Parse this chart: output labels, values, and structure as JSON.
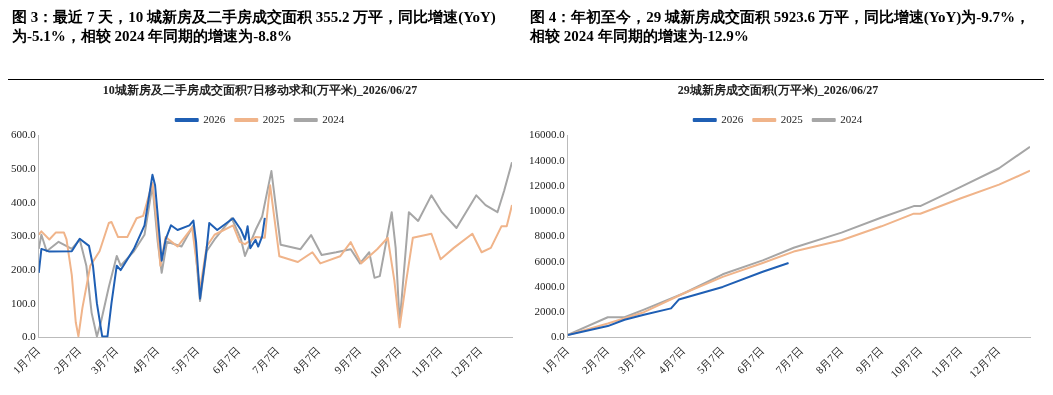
{
  "chart_data": [
    {
      "type": "line",
      "subtitle": "图 3：最近 7 天，10 城新房及二手房成交面积 355.2 万平，同比增速(YoY)为-5.1%，相较 2024 年同期的增速为-8.8%",
      "title": "10城新房及二手房成交面积7日移动求和(万平米)_2026/06/27",
      "legend": "top",
      "marker": "none",
      "line_style": "solid",
      "xlim": [
        "--01-07",
        "--12-31"
      ],
      "xticks": [
        {
          "value": "--01-07",
          "label": "1月7日"
        },
        {
          "value": "--02-07",
          "label": "2月7日"
        },
        {
          "value": "--03-07",
          "label": "3月7日"
        },
        {
          "value": "--04-07",
          "label": "4月7日"
        },
        {
          "value": "--05-07",
          "label": "5月7日"
        },
        {
          "value": "--06-07",
          "label": "6月7日"
        },
        {
          "value": "--07-07",
          "label": "7月7日"
        },
        {
          "value": "--08-07",
          "label": "8月7日"
        },
        {
          "value": "--09-07",
          "label": "9月7日"
        },
        {
          "value": "--10-07",
          "label": "10月7日"
        },
        {
          "value": "--11-07",
          "label": "11月7日"
        },
        {
          "value": "--12-07",
          "label": "12月7日"
        }
      ],
      "ylim": [
        0,
        600
      ],
      "yticks": [
        {
          "value": 0,
          "label": "0.0"
        },
        {
          "value": 100,
          "label": "100.0"
        },
        {
          "value": 200,
          "label": "200.0"
        },
        {
          "value": 300,
          "label": "300.0"
        },
        {
          "value": 400,
          "label": "400.0"
        },
        {
          "value": 500,
          "label": "500.0"
        },
        {
          "value": 600,
          "label": "600.0"
        }
      ],
      "series": [
        {
          "name": "2026",
          "color": "#1f5fb4",
          "x": [
            "--01-07",
            "--01-09",
            "--01-15",
            "--02-01",
            "--02-07",
            "--02-14",
            "--02-17",
            "--02-20",
            "--02-24",
            "--02-28",
            "--03-03",
            "--03-07",
            "--03-10",
            "--03-20",
            "--03-28",
            "--04-03",
            "--04-05",
            "--04-10",
            "--04-13",
            "--04-17",
            "--04-22",
            "--05-01",
            "--05-04",
            "--05-06",
            "--05-09",
            "--05-14",
            "--05-16",
            "--05-22",
            "--06-03",
            "--06-09",
            "--06-12",
            "--06-14",
            "--06-16",
            "--06-20",
            "--06-22",
            "--06-25",
            "--06-27"
          ],
          "values": [
            192,
            263,
            255,
            256,
            293,
            272,
            213,
            101,
            3,
            3,
            101,
            213,
            200,
            263,
            333,
            483,
            452,
            228,
            291,
            333,
            319,
            333,
            347,
            284,
            115,
            263,
            340,
            319,
            354,
            319,
            291,
            330,
            265,
            290,
            270,
            300,
            355
          ]
        },
        {
          "name": "2025",
          "color": "#f0b48a",
          "x": [
            "--01-07",
            "--01-09",
            "--01-15",
            "--01-20",
            "--01-26",
            "--01-28",
            "--02-01",
            "--02-04",
            "--02-06",
            "--02-09",
            "--02-15",
            "--02-22",
            "--03-01",
            "--03-03",
            "--03-08",
            "--03-15",
            "--03-22",
            "--03-27",
            "--04-03",
            "--04-06",
            "--04-09",
            "--04-13",
            "--04-22",
            "--05-03",
            "--05-09",
            "--05-14",
            "--05-20",
            "--06-03",
            "--06-08",
            "--06-12",
            "--06-20",
            "--06-27",
            "--07-01",
            "--07-08",
            "--07-22",
            "--08-02",
            "--08-08",
            "--08-23",
            "--08-31",
            "--09-08",
            "--09-20",
            "--09-28",
            "--10-03",
            "--10-07",
            "--10-12",
            "--10-17",
            "--10-31",
            "--11-07",
            "--11-17",
            "--12-01",
            "--12-08",
            "--12-15",
            "--12-23",
            "--12-27",
            "--12-31"
          ],
          "values": [
            305,
            315,
            291,
            312,
            312,
            291,
            185,
            45,
            3,
            87,
            213,
            256,
            340,
            343,
            298,
            298,
            354,
            361,
            459,
            354,
            213,
            298,
            270,
            326,
            143,
            270,
            305,
            333,
            284,
            277,
            298,
            296,
            452,
            241,
            224,
            253,
            220,
            241,
            283,
            220,
            262,
            296,
            169,
            30,
            169,
            296,
            308,
            232,
            266,
            308,
            253,
            266,
            330,
            330,
            393
          ]
        },
        {
          "name": "2024",
          "color": "#a6a6a6",
          "x": [
            "--01-07",
            "--01-09",
            "--01-13",
            "--01-22",
            "--02-01",
            "--02-07",
            "--02-12",
            "--02-16",
            "--02-20",
            "--02-23",
            "--03-01",
            "--03-07",
            "--03-10",
            "--03-20",
            "--03-28",
            "--04-03",
            "--04-07",
            "--04-10",
            "--04-14",
            "--04-25",
            "--05-04",
            "--05-09",
            "--05-14",
            "--05-20",
            "--06-02",
            "--06-09",
            "--06-12",
            "--06-20",
            "--06-25",
            "--07-02",
            "--07-09",
            "--07-24",
            "--08-01",
            "--08-09",
            "--08-20",
            "--08-31",
            "--09-07",
            "--09-14",
            "--09-18",
            "--09-22",
            "--10-01",
            "--10-04",
            "--10-07",
            "--10-14",
            "--10-21",
            "--10-31",
            "--11-08",
            "--11-19",
            "--12-04",
            "--12-11",
            "--12-20",
            "--12-25",
            "--12-31"
          ],
          "values": [
            263,
            305,
            256,
            284,
            263,
            291,
            213,
            73,
            3,
            45,
            150,
            242,
            213,
            256,
            305,
            452,
            284,
            192,
            284,
            270,
            333,
            108,
            256,
            291,
            354,
            291,
            242,
            319,
            359,
            494,
            275,
            262,
            304,
            245,
            253,
            262,
            220,
            253,
            177,
            182,
            372,
            266,
            42,
            372,
            346,
            422,
            372,
            325,
            422,
            393,
            372,
            435,
            520
          ]
        }
      ]
    },
    {
      "type": "line",
      "subtitle": "图 4：年初至今，29 城新房成交面积 5923.6 万平，同比增速(YoY)为-9.7%，相较 2024 年同期的增速为-12.9%",
      "title": "29城新房成交面积(万平米)_2026/06/27",
      "legend": "top",
      "marker": "none",
      "line_style": "solid",
      "xlim": [
        "--01-07",
        "--12-31"
      ],
      "xticks": [
        {
          "value": "--01-07",
          "label": "1月7日"
        },
        {
          "value": "--02-07",
          "label": "2月7日"
        },
        {
          "value": "--03-07",
          "label": "3月7日"
        },
        {
          "value": "--04-07",
          "label": "4月7日"
        },
        {
          "value": "--05-07",
          "label": "5月7日"
        },
        {
          "value": "--06-07",
          "label": "6月7日"
        },
        {
          "value": "--07-07",
          "label": "7月7日"
        },
        {
          "value": "--08-07",
          "label": "8月7日"
        },
        {
          "value": "--09-07",
          "label": "9月7日"
        },
        {
          "value": "--10-07",
          "label": "10月7日"
        },
        {
          "value": "--11-07",
          "label": "11月7日"
        },
        {
          "value": "--12-07",
          "label": "12月7日"
        }
      ],
      "ylim": [
        0,
        16000
      ],
      "yticks": [
        {
          "value": 0,
          "label": "0.0"
        },
        {
          "value": 2000,
          "label": "2000.0"
        },
        {
          "value": 4000,
          "label": "4000.0"
        },
        {
          "value": 6000,
          "label": "6000.0"
        },
        {
          "value": 8000,
          "label": "8000.0"
        },
        {
          "value": 10000,
          "label": "10000.0"
        },
        {
          "value": 12000,
          "label": "12000.0"
        },
        {
          "value": 14000,
          "label": "14000.0"
        },
        {
          "value": 16000,
          "label": "16000.0"
        }
      ],
      "series": [
        {
          "name": "2026",
          "color": "#1f5fb4",
          "x": [
            "--01-07",
            "--02-07",
            "--02-20",
            "--03-07",
            "--03-28",
            "--04-03",
            "--05-07",
            "--06-07",
            "--06-27"
          ],
          "values": [
            200,
            900,
            1400,
            1800,
            2300,
            3000,
            4000,
            5200,
            5900
          ]
        },
        {
          "name": "2025",
          "color": "#f0b48a",
          "x": [
            "--01-07",
            "--02-07",
            "--03-07",
            "--04-07",
            "--05-07",
            "--06-07",
            "--07-01",
            "--08-07",
            "--09-07",
            "--10-02",
            "--10-07",
            "--11-07",
            "--12-07",
            "--12-31"
          ],
          "values": [
            200,
            1100,
            2000,
            3500,
            4800,
            5900,
            6800,
            7700,
            8800,
            9800,
            9800,
            11000,
            12100,
            13200
          ]
        },
        {
          "name": "2024",
          "color": "#a6a6a6",
          "x": [
            "--01-07",
            "--02-07",
            "--02-20",
            "--03-07",
            "--04-07",
            "--05-07",
            "--06-07",
            "--07-01",
            "--08-07",
            "--09-07",
            "--10-02",
            "--10-07",
            "--11-07",
            "--12-07",
            "--12-31"
          ],
          "values": [
            200,
            1600,
            1600,
            2200,
            3500,
            5000,
            6100,
            7100,
            8300,
            9500,
            10400,
            10400,
            11900,
            13400,
            15100
          ]
        }
      ]
    }
  ]
}
